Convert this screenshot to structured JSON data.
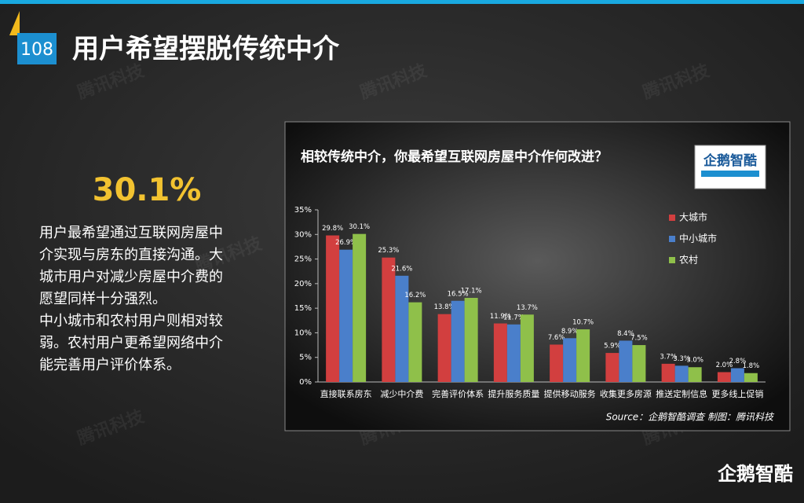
{
  "page": {
    "number": "108",
    "title": "用户希望摆脱传统中介",
    "highlight": "30.1%",
    "paragraph": [
      "用户最希望通过互联网房屋中",
      "介实现与房东的直接沟通。大",
      "城市用户对减少房屋中介费的",
      "愿望同样十分强烈。",
      "中小城市和农村用户则相对较",
      "弱。农村用户更希望网络中介",
      "能完善用户评价体系。"
    ],
    "watermark": "腾讯科技",
    "logo": "企鹅智酷"
  },
  "chart_data": {
    "type": "bar",
    "title": "相较传统中介，你最希望互联网房屋中介作何改进？",
    "source": "Source：企鹅智酷调查  制图：腾讯科技",
    "badge": "企鹅智酷",
    "categories": [
      "直接联系房东",
      "减少中介费",
      "完善评价体系",
      "提升服务质量",
      "提供移动服务",
      "收集更多房源",
      "推送定制信息",
      "更多线上促销"
    ],
    "series": [
      {
        "name": "大城市",
        "color": "#d23f3f",
        "values": [
          29.8,
          25.3,
          13.8,
          11.9,
          7.6,
          5.9,
          3.7,
          2.0
        ],
        "value_labels": [
          "29.8%",
          "25.3%",
          "13.8%",
          "11.9%",
          "7.6%",
          "5.9%",
          "3.7%",
          "2.0%"
        ]
      },
      {
        "name": "中小城市",
        "color": "#4a7fcb",
        "values": [
          26.9,
          21.6,
          16.5,
          11.7,
          8.9,
          8.4,
          3.3,
          2.8
        ],
        "value_labels": [
          "26.9%",
          "21.6%",
          "16.5%",
          "11.7%",
          "8.9%",
          "8.4%",
          "3.3%",
          "2.8%"
        ]
      },
      {
        "name": "农村",
        "color": "#8fc04a",
        "values": [
          30.1,
          16.2,
          17.1,
          13.7,
          10.7,
          7.5,
          3.0,
          1.8
        ],
        "value_labels": [
          "30.1%",
          "16.2%",
          "17.1%",
          "13.7%",
          "10.7%",
          "7.5%",
          "3.0%",
          "1.8%"
        ]
      }
    ],
    "ylim": [
      0,
      35
    ],
    "yticks": [
      {
        "value": 0,
        "label": "0%"
      },
      {
        "value": 5,
        "label": "5%"
      },
      {
        "value": 10,
        "label": "10%"
      },
      {
        "value": 15,
        "label": "15%"
      },
      {
        "value": 20,
        "label": "20%"
      },
      {
        "value": 25,
        "label": "25%"
      },
      {
        "value": 30,
        "label": "30%"
      },
      {
        "value": 35,
        "label": "35%"
      }
    ],
    "grid": false
  }
}
